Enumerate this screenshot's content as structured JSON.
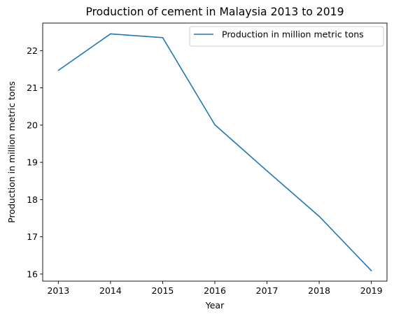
{
  "chart_data": {
    "type": "line",
    "title": "Production of cement in Malaysia 2013 to 2019",
    "xlabel": "Year",
    "ylabel": "Production in million metric tons",
    "x": [
      2013,
      2014,
      2015,
      2016,
      2017,
      2018,
      2019
    ],
    "series": [
      {
        "name": "Production in million metric tons",
        "values": [
          21.47,
          22.45,
          22.35,
          20.01,
          18.77,
          17.55,
          16.09
        ],
        "color": "#1f77b4"
      }
    ],
    "xticks": [
      "2013",
      "2014",
      "2015",
      "2016",
      "2017",
      "2018",
      "2019"
    ],
    "yticks": [
      "16",
      "17",
      "18",
      "19",
      "20",
      "21",
      "22"
    ],
    "xlim": [
      2012.7,
      2019.3
    ],
    "ylim": [
      15.81,
      22.74
    ],
    "grid": false,
    "legend_position": "top-right"
  }
}
